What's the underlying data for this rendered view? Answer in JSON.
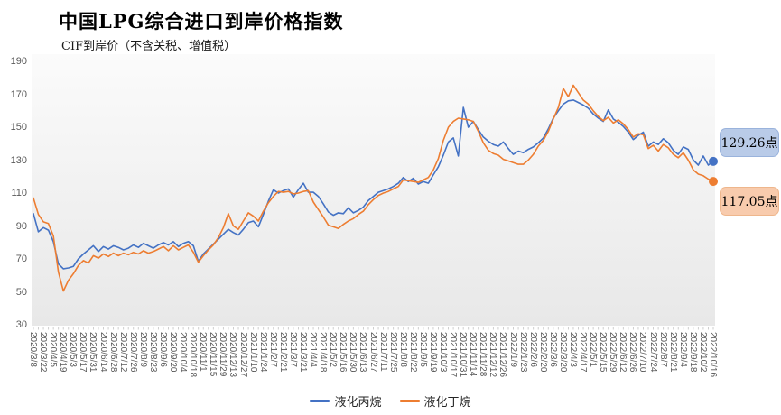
{
  "header": {
    "title": "中国LPG综合进口到岸价格指数",
    "subtitle": "CIF到岸价（不含关税、增值税）"
  },
  "legend": [
    {
      "label": "液化丙烷",
      "color": "#4472c4"
    },
    {
      "label": "液化丁烷",
      "color": "#ed7d31"
    }
  ],
  "callouts": [
    {
      "text": "129.26点",
      "series": "液化丙烷",
      "fill": "#b9cbe8",
      "border": "#9ab3dc"
    },
    {
      "text": "117.05点",
      "series": "液化丁烷",
      "fill": "#f8cbad",
      "border": "#eeb68c"
    }
  ],
  "chart_data": {
    "type": "line",
    "title": "中国LPG综合进口到岸价格指数",
    "subtitle": "CIF到岸价（不含关税、增值税）",
    "ylim": [
      30,
      190
    ],
    "y_ticks": [
      30,
      50,
      70,
      90,
      110,
      130,
      150,
      170,
      190
    ],
    "grid": false,
    "legend_position": "bottom",
    "x_label_rotation": 90,
    "x_labels_shown_every": 2,
    "x": [
      "2020/3/8",
      "2020/3/15",
      "2020/3/22",
      "2020/3/29",
      "2020/4/5",
      "2020/4/12",
      "2020/4/19",
      "2020/4/26",
      "2020/5/3",
      "2020/5/10",
      "2020/5/17",
      "2020/5/24",
      "2020/5/31",
      "2020/6/7",
      "2020/6/14",
      "2020/6/21",
      "2020/6/28",
      "2020/7/5",
      "2020/7/12",
      "2020/7/19",
      "2020/7/26",
      "2020/8/2",
      "2020/8/9",
      "2020/8/16",
      "2020/8/23",
      "2020/8/30",
      "2020/9/6",
      "2020/9/13",
      "2020/9/20",
      "2020/9/27",
      "2020/10/4",
      "2020/10/11",
      "2020/10/18",
      "2020/10/25",
      "2020/11/1",
      "2020/11/8",
      "2020/11/15",
      "2020/11/22",
      "2020/11/29",
      "2020/12/6",
      "2020/12/13",
      "2020/12/20",
      "2020/12/27",
      "2021/1/3",
      "2021/1/10",
      "2021/1/17",
      "2021/1/24",
      "2021/1/31",
      "2021/2/7",
      "2021/2/14",
      "2021/2/21",
      "2021/2/28",
      "2021/3/7",
      "2021/3/14",
      "2021/3/21",
      "2021/3/28",
      "2021/4/4",
      "2021/4/11",
      "2021/4/18",
      "2021/4/25",
      "2021/5/2",
      "2021/5/9",
      "2021/5/16",
      "2021/5/23",
      "2021/5/30",
      "2021/6/6",
      "2021/6/13",
      "2021/6/20",
      "2021/6/27",
      "2021/7/4",
      "2021/7/11",
      "2021/7/18",
      "2021/7/25",
      "2021/8/1",
      "2021/8/8",
      "2021/8/15",
      "2021/8/22",
      "2021/8/29",
      "2021/9/5",
      "2021/9/12",
      "2021/9/19",
      "2021/9/26",
      "2021/10/3",
      "2021/10/10",
      "2021/10/17",
      "2021/10/24",
      "2021/10/31",
      "2021/11/7",
      "2021/11/14",
      "2021/11/21",
      "2021/11/28",
      "2021/12/5",
      "2021/12/12",
      "2021/12/19",
      "2021/12/26",
      "2022/1/2",
      "2022/1/9",
      "2022/1/16",
      "2022/1/23",
      "2022/1/30",
      "2022/2/6",
      "2022/2/13",
      "2022/2/20",
      "2022/2/27",
      "2022/3/6",
      "2022/3/13",
      "2022/3/20",
      "2022/3/27",
      "2022/4/3",
      "2022/4/10",
      "2022/4/17",
      "2022/4/24",
      "2022/5/1",
      "2022/5/8",
      "2022/5/15",
      "2022/5/22",
      "2022/5/29",
      "2022/6/5",
      "2022/6/12",
      "2022/6/19",
      "2022/6/26",
      "2022/7/3",
      "2022/7/10",
      "2022/7/17",
      "2022/7/24",
      "2022/7/31",
      "2022/8/7",
      "2022/8/14",
      "2022/8/21",
      "2022/8/28",
      "2022/9/4",
      "2022/9/11",
      "2022/9/18",
      "2022/9/25",
      "2022/10/2",
      "2022/10/9",
      "2022/10/16"
    ],
    "series": [
      {
        "name": "液化丙烷",
        "color": "#4472c4",
        "values": [
          97.5,
          86.5,
          89,
          87.5,
          80.5,
          67,
          64,
          64.5,
          65.5,
          70,
          73,
          75.5,
          78,
          74.5,
          77.5,
          76,
          78,
          77,
          75.5,
          76.5,
          78.5,
          77,
          79.5,
          78,
          76.5,
          78.5,
          80,
          78.5,
          80.5,
          77.5,
          79.5,
          80.5,
          78,
          68.5,
          73,
          76,
          79,
          82,
          85,
          88,
          86,
          84.5,
          88,
          92,
          93,
          89.5,
          97,
          105,
          112,
          110,
          111.5,
          112.5,
          107.5,
          112,
          116,
          110.5,
          110.5,
          108,
          103.5,
          98.5,
          96.5,
          98,
          97.5,
          101,
          98,
          99.5,
          101.5,
          105.5,
          108,
          110.5,
          111.5,
          112.5,
          114,
          116,
          119.5,
          117,
          119,
          115.5,
          117,
          116,
          121,
          126,
          133,
          141,
          143.5,
          132.5,
          162,
          150,
          153.5,
          148.5,
          144,
          141.5,
          139.5,
          138.5,
          141,
          137,
          133.5,
          135.5,
          134.5,
          136.5,
          138,
          140.5,
          143.5,
          149,
          155.5,
          160,
          164,
          166,
          166.5,
          165,
          163.5,
          161.5,
          158,
          155.5,
          153.5,
          160.5,
          155,
          153,
          150.5,
          147,
          142.5,
          145,
          147,
          138.5,
          141,
          139.5,
          143,
          140.5,
          136,
          133.5,
          138,
          136.5,
          130,
          127,
          132.5,
          127,
          129.26
        ]
      },
      {
        "name": "液化丁烷",
        "color": "#ed7d31",
        "values": [
          107,
          97,
          92.5,
          91.5,
          84,
          62,
          50.5,
          57,
          61,
          66,
          69,
          67.5,
          72,
          70.5,
          73,
          71.5,
          73.5,
          72,
          73.5,
          72.5,
          74,
          73,
          75,
          73.5,
          74.5,
          76,
          77.5,
          75,
          78,
          75.5,
          77,
          78.5,
          74,
          68,
          72,
          75.5,
          78.5,
          83,
          89,
          97.5,
          90,
          88,
          93,
          98,
          96,
          93,
          99,
          104,
          108,
          111,
          110.5,
          111,
          109.5,
          110,
          111,
          111.5,
          104.5,
          100,
          95.5,
          90.5,
          89.5,
          88.5,
          91,
          93,
          94.5,
          97,
          99,
          103,
          106,
          108.5,
          110,
          111,
          112.5,
          114,
          118,
          117.5,
          117,
          116.5,
          118,
          119.5,
          124,
          131,
          142,
          150,
          153.5,
          155.5,
          155,
          154.5,
          153.5,
          147.5,
          140.5,
          136,
          134,
          133,
          130.5,
          129.5,
          128.5,
          127.5,
          127.5,
          130,
          133.5,
          138.5,
          142,
          147.5,
          155,
          162,
          173.5,
          168.5,
          175.5,
          171,
          166.5,
          164,
          160,
          156.5,
          154,
          156,
          152.5,
          154.5,
          152,
          148.5,
          144,
          146,
          145.5,
          137,
          139,
          135.5,
          139.5,
          137.5,
          133.5,
          131.5,
          134.5,
          130,
          124,
          121.5,
          120.5,
          118.5,
          117.05
        ]
      }
    ],
    "end_labels": [
      {
        "series": "液化丙烷",
        "value": 129.26,
        "text": "129.26点"
      },
      {
        "series": "液化丁烷",
        "value": 117.05,
        "text": "117.05点"
      }
    ]
  },
  "colors": {
    "propane": "#4472c4",
    "butane": "#ed7d31",
    "axis_text": "#595959",
    "plot_bg_top": "#fafafa",
    "plot_bg_bottom": "#e8e8e8",
    "tick": "#c9c9c9"
  }
}
